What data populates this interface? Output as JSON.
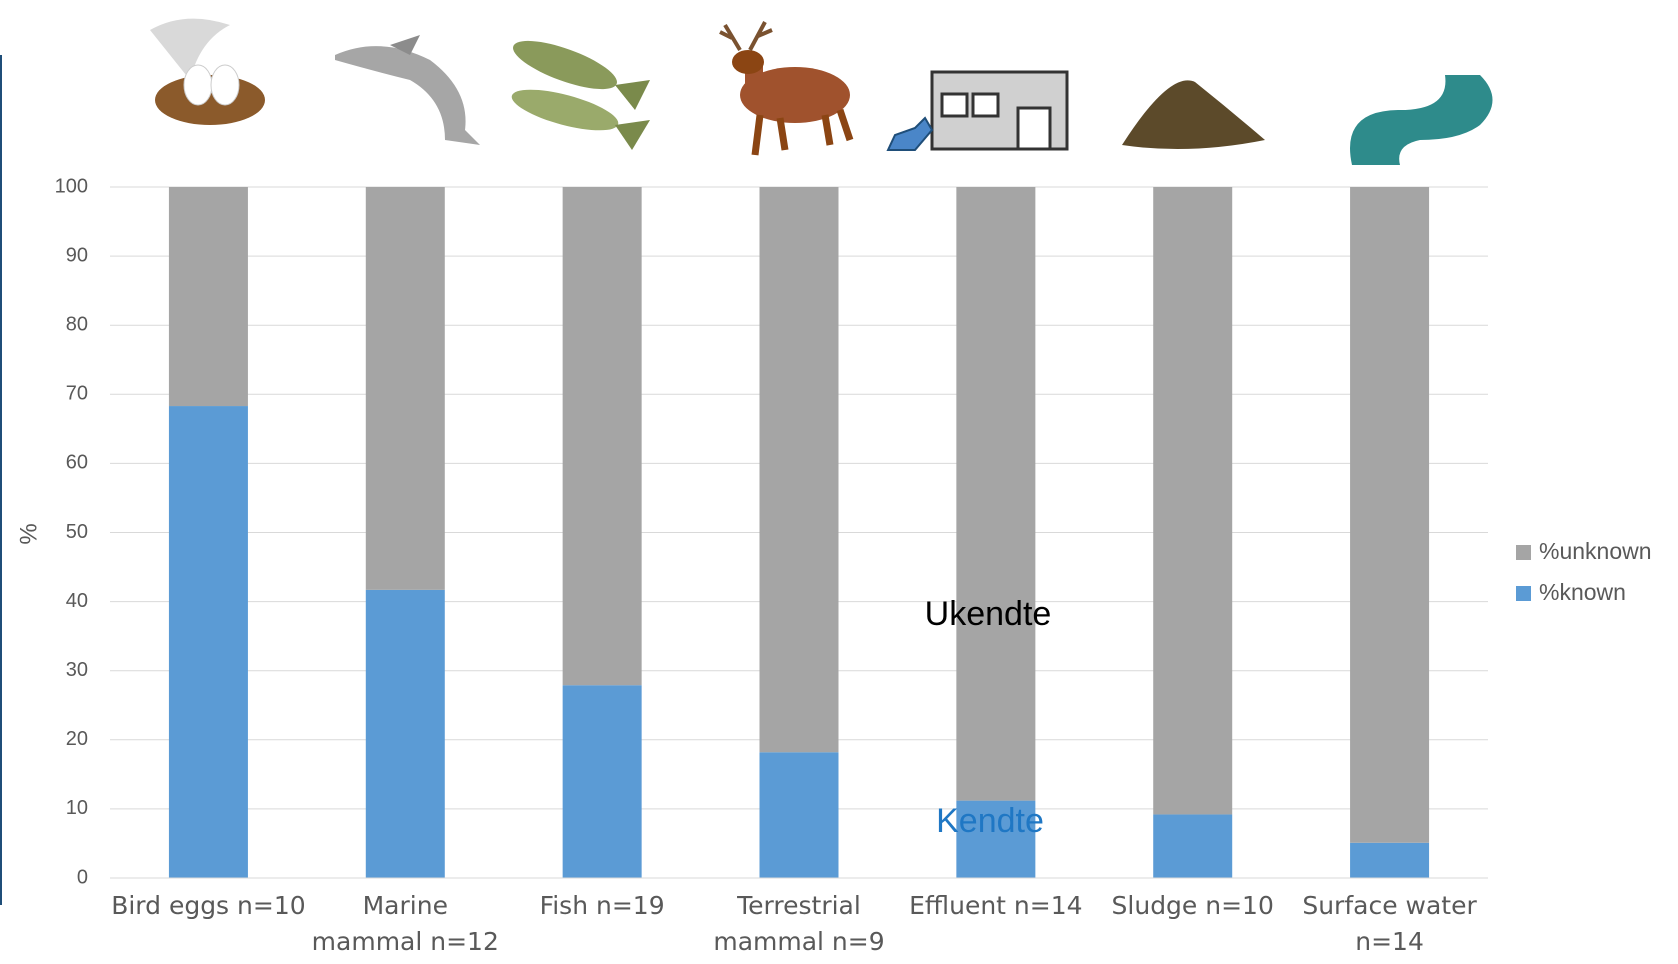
{
  "chart_data": {
    "type": "stacked-bar",
    "y_label": "%",
    "categories": [
      "Bird eggs n=10",
      "Marine\nmammal n=12",
      "Fish n=19",
      "Terrestrial\nmammal n=9",
      "Effluent n=14",
      "Sludge n=10",
      "Surface water\nn=14"
    ],
    "series": [
      {
        "name": "%known",
        "color": "#5b9bd5",
        "values": [
          68.3,
          41.7,
          27.9,
          18.2,
          11.2,
          9.2,
          5.1
        ]
      },
      {
        "name": "%unknown",
        "color": "#a5a5a5",
        "values": [
          31.7,
          58.3,
          72.1,
          81.8,
          88.8,
          90.8,
          94.9
        ]
      }
    ],
    "ylim": [
      0,
      100
    ],
    "yticks": [
      0,
      10,
      20,
      30,
      40,
      50,
      60,
      70,
      80,
      90,
      100
    ],
    "grid": true,
    "legend": "right",
    "annotations": [
      {
        "text": "Ukendte",
        "color": "#000000"
      },
      {
        "text": "Kendte",
        "color": "#1f77c4"
      }
    ]
  }
}
